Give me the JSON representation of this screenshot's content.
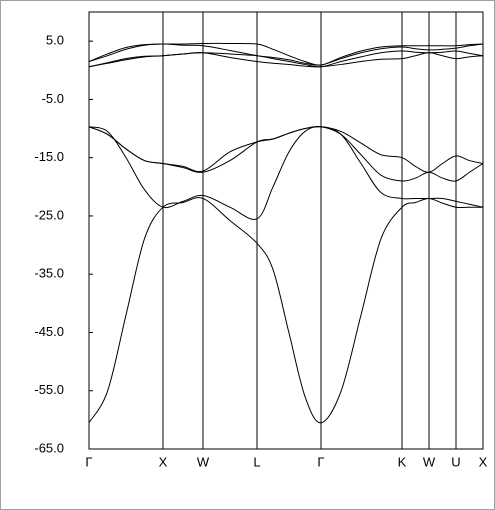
{
  "chart_data": {
    "type": "line",
    "x": [
      0,
      18.5,
      37,
      55.5,
      74,
      94,
      114,
      141,
      168,
      184,
      200,
      216,
      232,
      252,
      272,
      292,
      313,
      326.5,
      340,
      353.5,
      367,
      380.5,
      394
    ],
    "xlim": [
      0,
      394
    ],
    "xticks": [
      {
        "value": 0,
        "label": "Γ"
      },
      {
        "value": 74,
        "label": "X"
      },
      {
        "value": 114,
        "label": "W"
      },
      {
        "value": 168,
        "label": "L"
      },
      {
        "value": 232,
        "label": "Γ"
      },
      {
        "value": 313,
        "label": "K"
      },
      {
        "value": 340,
        "label": "W"
      },
      {
        "value": 367,
        "label": "U"
      },
      {
        "value": 394,
        "label": "X"
      }
    ],
    "ylim": [
      -65,
      10
    ],
    "yticks": [
      {
        "value": 5,
        "label": "5.0"
      },
      {
        "value": -5,
        "label": "-5.0"
      },
      {
        "value": -15,
        "label": "-15.0"
      },
      {
        "value": -25,
        "label": "-25.0"
      },
      {
        "value": -35,
        "label": "-35.0"
      },
      {
        "value": -45,
        "label": "-45.0"
      },
      {
        "value": -55,
        "label": "-55.0"
      },
      {
        "value": -65,
        "label": "-65.0"
      }
    ],
    "grid": "x",
    "series": [
      {
        "color": "#000000",
        "values": [
          -60.5,
          -55.1,
          -42,
          -28.9,
          -23.5,
          -22.7,
          -22,
          -25.8,
          -29.7,
          -34.2,
          -45.1,
          -56,
          -60.5,
          -55.1,
          -42,
          -28.9,
          -23.5,
          -22.7,
          -22,
          -22.8,
          -23.5,
          -23.5,
          -23.5
        ]
      },
      {
        "color": "#000000",
        "values": [
          -9.7,
          -10.5,
          -15,
          -20.5,
          -23.5,
          -22.5,
          -21.5,
          -23.5,
          -25.5,
          -20,
          -14,
          -10.5,
          -9.7,
          -11,
          -16,
          -21,
          -22,
          -22,
          -22,
          -22,
          -22.5,
          -23,
          -23.5
        ]
      },
      {
        "color": "#000000",
        "values": [
          -9.7,
          -11,
          -13.5,
          -15.5,
          -16,
          -16.5,
          -17.3,
          -14,
          -12.3,
          -11.8,
          -10.8,
          -10,
          -9.7,
          -11,
          -14.5,
          -18,
          -19,
          -18.5,
          -17.5,
          -18.5,
          -19,
          -17.5,
          -16
        ]
      },
      {
        "color": "#000000",
        "values": [
          -9.7,
          -11,
          -13.5,
          -15.5,
          -16,
          -16.7,
          -17.5,
          -15.5,
          -12.3,
          -11.8,
          -10.8,
          -10,
          -9.7,
          -10.5,
          -12.5,
          -14.5,
          -15,
          -16.5,
          -17.5,
          -16,
          -14.7,
          -15.5,
          -16
        ]
      },
      {
        "color": "#000000",
        "values": [
          0.6,
          1.2,
          1.8,
          2.3,
          2.5,
          2.8,
          3.0,
          2.2,
          1.5,
          1.2,
          1.0,
          0.7,
          0.6,
          1.0,
          1.5,
          1.9,
          2.0,
          2.5,
          3.0,
          2.5,
          2.0,
          2.3,
          2.5
        ]
      },
      {
        "color": "#000000",
        "values": [
          0.6,
          1.3,
          2.0,
          2.4,
          2.5,
          2.8,
          3.0,
          2.8,
          2.5,
          2.0,
          1.5,
          1.0,
          0.6,
          1.5,
          2.3,
          3.0,
          3.3,
          3.1,
          3.0,
          3.1,
          3.3,
          2.9,
          2.5
        ]
      },
      {
        "color": "#000000",
        "values": [
          1.5,
          2.5,
          3.6,
          4.3,
          4.5,
          4.3,
          4.2,
          3.4,
          2.5,
          2.2,
          1.8,
          1.2,
          0.9,
          2.0,
          3.0,
          3.7,
          4.0,
          3.7,
          3.5,
          3.6,
          3.8,
          4.2,
          4.5
        ]
      },
      {
        "color": "#000000",
        "values": [
          1.5,
          2.8,
          3.9,
          4.4,
          4.5,
          4.5,
          4.6,
          4.6,
          4.5,
          3.6,
          2.5,
          1.5,
          0.9,
          2.2,
          3.3,
          4.0,
          4.2,
          4.2,
          4.2,
          4.2,
          4.2,
          4.4,
          4.5
        ]
      }
    ]
  }
}
